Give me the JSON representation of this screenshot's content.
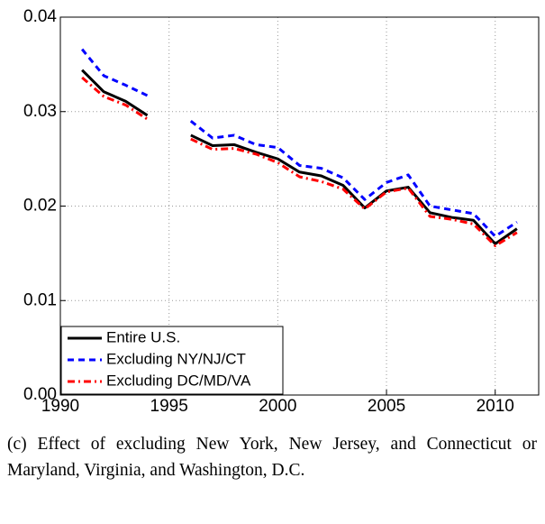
{
  "chart_data": {
    "type": "line",
    "x": [
      1991,
      1992,
      1993,
      1994,
      1995,
      1996,
      1997,
      1998,
      1999,
      2000,
      2001,
      2002,
      2003,
      2004,
      2005,
      2006,
      2007,
      2008,
      2009,
      2010,
      2011
    ],
    "series": [
      {
        "name": "Entire U.S.",
        "color": "#000000",
        "style": "solid",
        "values": [
          0.0344,
          0.0321,
          0.0311,
          0.0296,
          null,
          0.0275,
          0.0264,
          0.0265,
          0.0257,
          0.025,
          0.0236,
          0.0232,
          0.0222,
          0.0198,
          0.0216,
          0.022,
          0.0193,
          0.0188,
          0.0185,
          0.016,
          0.0176
        ]
      },
      {
        "name": "Excluding NY/NJ/CT",
        "color": "#0000ff",
        "style": "dashed",
        "values": [
          0.0366,
          0.0338,
          0.0328,
          0.0317,
          null,
          0.029,
          0.0272,
          0.0275,
          0.0265,
          0.0262,
          0.0243,
          0.024,
          0.023,
          0.0207,
          0.0225,
          0.0233,
          0.02,
          0.0196,
          0.0192,
          0.0168,
          0.0183
        ]
      },
      {
        "name": "Excluding DC/MD/VA",
        "color": "#ff0000",
        "style": "dashdot",
        "values": [
          0.0336,
          0.0316,
          0.0307,
          0.0292,
          null,
          0.0271,
          0.026,
          0.0261,
          0.0255,
          0.0246,
          0.0231,
          0.0226,
          0.0218,
          0.0197,
          0.0215,
          0.0219,
          0.0189,
          0.0186,
          0.0181,
          0.0158,
          0.0172
        ]
      }
    ],
    "xlim": [
      1990,
      2012
    ],
    "xticks": [
      1990,
      1995,
      2000,
      2005,
      2010
    ],
    "ylim": [
      0,
      0.04
    ],
    "yticks": [
      {
        "value": 0,
        "label": "0.00"
      },
      0.01,
      0.02,
      0.03,
      0.04
    ],
    "grid": true,
    "legend": "lower left",
    "caption": "(c) Effect of excluding New York, New Jersey, and Connecticut or Maryland, Virginia, and Washington, D.C."
  }
}
